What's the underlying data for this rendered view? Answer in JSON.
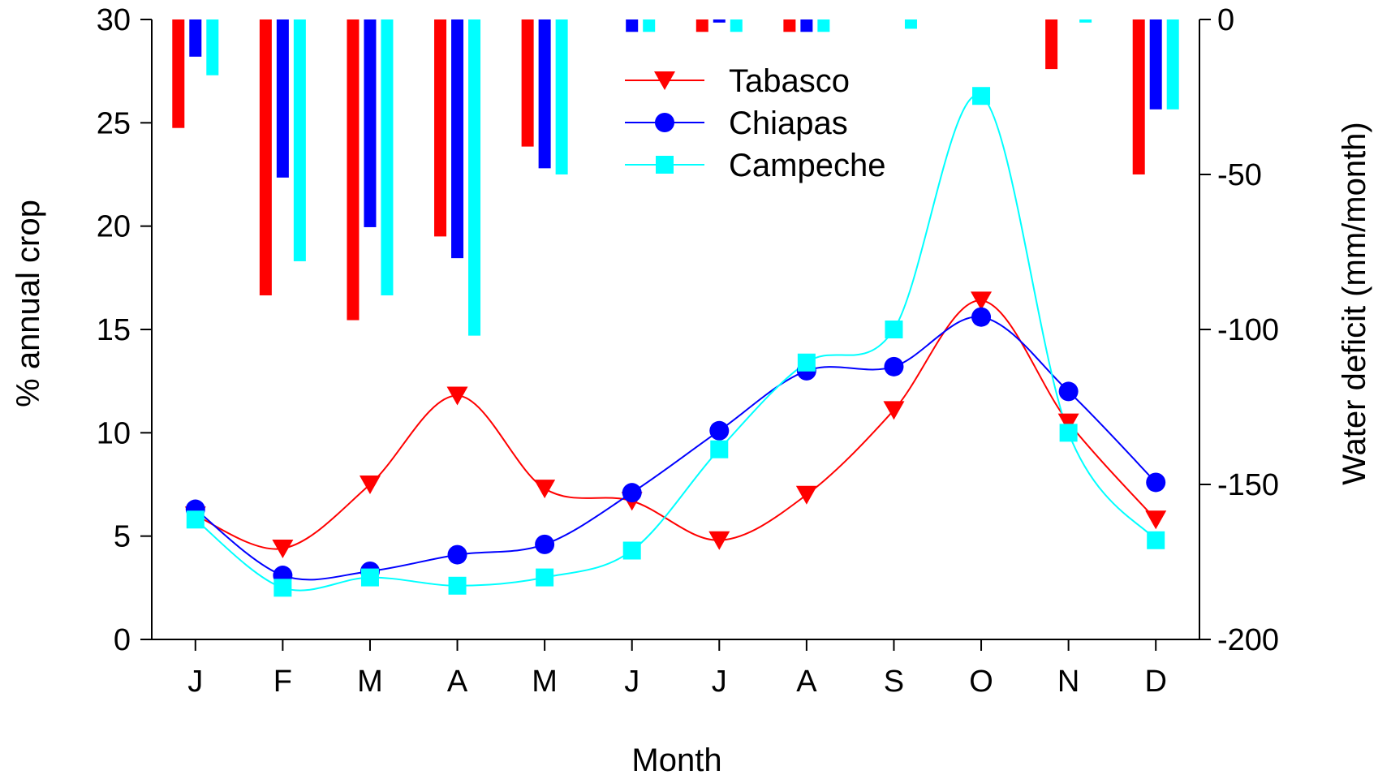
{
  "chart_data": {
    "type": "line",
    "xlabel": "Month",
    "ylabel": "% annual crop",
    "y2label": "Water deficit (mm/month)",
    "categories": [
      "J",
      "F",
      "M",
      "A",
      "M",
      "J",
      "J",
      "A",
      "S",
      "O",
      "N",
      "D"
    ],
    "ylim": [
      0,
      30
    ],
    "y_ticks": [
      "0",
      "5",
      "10",
      "15",
      "20",
      "25",
      "30"
    ],
    "y2lim": [
      -200,
      0
    ],
    "y2_ticks": [
      "0",
      "-50",
      "-100",
      "-150",
      "-200"
    ],
    "legend_position": "top-right",
    "grid": false,
    "series": [
      {
        "name": "Tabasco",
        "color": "#ff0000",
        "marker": "triangle-down",
        "values": [
          6.0,
          4.4,
          7.5,
          11.8,
          7.3,
          6.7,
          4.8,
          7.0,
          11.1,
          16.4,
          10.5,
          5.8
        ]
      },
      {
        "name": "Chiapas",
        "color": "#0000ff",
        "marker": "circle",
        "values": [
          6.3,
          3.1,
          3.3,
          4.1,
          4.6,
          7.1,
          10.1,
          13.0,
          13.2,
          15.6,
          12.0,
          7.6
        ]
      },
      {
        "name": "Campeche",
        "color": "#00ffff",
        "marker": "square",
        "values": [
          5.8,
          2.5,
          3.0,
          2.6,
          3.0,
          4.3,
          9.2,
          13.4,
          15.0,
          26.3,
          10.0,
          4.8
        ]
      }
    ],
    "bar_series": [
      {
        "name": "Tabasco",
        "color": "#ff0000",
        "values": [
          -35,
          -89,
          -97,
          -70,
          -41,
          0,
          -4,
          -4,
          0,
          0,
          -16,
          -50
        ]
      },
      {
        "name": "Chiapas",
        "color": "#0000ff",
        "values": [
          -12,
          -51,
          -67,
          -77,
          -48,
          -4,
          -1,
          -4,
          0,
          0,
          0,
          -29
        ]
      },
      {
        "name": "Campeche",
        "color": "#00ffff",
        "values": [
          -18,
          -78,
          -89,
          -102,
          -50,
          -4,
          -4,
          -4,
          -3,
          0,
          -1,
          -29
        ]
      }
    ]
  }
}
